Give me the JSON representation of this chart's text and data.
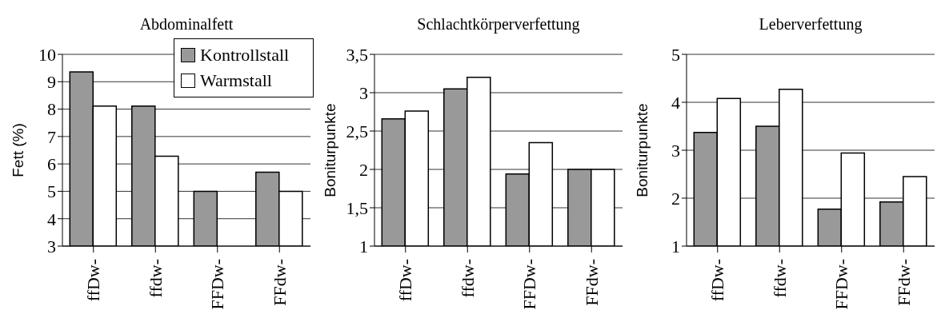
{
  "chart_data": [
    {
      "type": "bar",
      "title": "Abdominalfett",
      "ylabel": "Fett (%)",
      "categories": [
        "ffDw-",
        "ffdw-",
        "FFDw-",
        "FFdw-"
      ],
      "series": [
        {
          "name": "Kontrollstall",
          "color": "#999999",
          "values": [
            9.36,
            8.11,
            5.0,
            5.7
          ]
        },
        {
          "name": "Warmstall",
          "color": "#ffffff",
          "values": [
            8.11,
            6.28,
            null,
            5.0
          ]
        }
      ],
      "ylim": [
        3,
        10
      ],
      "yticks": [
        3,
        4,
        5,
        6,
        7,
        8,
        9,
        10
      ],
      "grid": "y",
      "legend": "top right"
    },
    {
      "type": "bar",
      "title": "Schlachtkörperverfettung",
      "ylabel": "Boniturpunkte",
      "categories": [
        "ffDw-",
        "ffdw-",
        "FFDw-",
        "FFdw-"
      ],
      "series": [
        {
          "color": "#999999",
          "values": [
            2.66,
            3.05,
            1.94,
            2.0
          ]
        },
        {
          "color": "#ffffff",
          "values": [
            2.76,
            3.2,
            2.35,
            2.0
          ]
        }
      ],
      "ylim": [
        1,
        3.5
      ],
      "yticks": [
        1,
        {
          "value": 1.5,
          "label": "1,5"
        },
        2,
        {
          "value": 2.5,
          "label": "2,5"
        },
        3,
        {
          "value": 3.5,
          "label": "3,5"
        }
      ],
      "grid": "y"
    },
    {
      "type": "bar",
      "title": "Leberverfettung",
      "ylabel": "Boniturpunkte",
      "categories": [
        "ffDw-",
        "ffdw-",
        "FFDw-",
        "FFdw-"
      ],
      "series": [
        {
          "color": "#999999",
          "values": [
            3.37,
            3.5,
            1.77,
            1.92
          ]
        },
        {
          "color": "#ffffff",
          "values": [
            4.08,
            4.27,
            2.94,
            2.45
          ]
        }
      ],
      "ylim": [
        1,
        5
      ],
      "yticks": [
        1,
        2,
        3,
        4,
        5
      ],
      "grid": "y"
    }
  ]
}
